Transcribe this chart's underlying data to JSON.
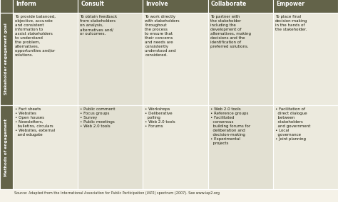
{
  "headers": [
    "Inform",
    "Consult",
    "Involve",
    "Collaborate",
    "Empower"
  ],
  "row_labels": [
    "Stakeholder engagement goal",
    "Methods of engagement"
  ],
  "header_bg": "#636349",
  "header_text_color": "#ffffff",
  "row_label_bg": "#636349",
  "row_label_text_color": "#ffffff",
  "cell_bg": [
    "#eceade",
    "#e2e0d2",
    "#eceade",
    "#e2e0d2",
    "#eceade"
  ],
  "border_color": "#ffffff",
  "source_text": "Source: Adapted from the International Association for Public Participation (IAP2) spectrum (2007). See www.iap2.org",
  "goal_row": [
    "To provide balanced,\nobjective, accurate\nand consistent\ninformation to\nassist stakeholders\nto understand\nthe problem,\nalternatives,\nopportunities and/or\nsolutions.",
    "To obtain feedback\nfrom stakeholders\non analysis,\nalternatives and/\nor outcomes.",
    "To work directly\nwith stakeholders\nthroughout\nthe process\nto ensure that\ntheir concerns\nand needs are\nconsistently\nunderstood and\nconsidered.",
    "To partner with\nthe stakeholder\nincluding the\ndevelopment of\nalternatives, making\ndecisions and the\nidentification of\npreferred solutions.",
    "To place final\ndecision-making\nin the hands of\nthe stakeholder."
  ],
  "methods_row": [
    "• Fact sheets\n• Websites\n• Open houses\n• Newsletters,\n  bulletins, circulars\n• Websites, external\n  and edugate",
    "• Public comment\n• Focus groups\n• Survey\n• Public meetings\n• Web 2.0 tools",
    "• Workshops\n• Deliberative\n  polling\n• Web 2.0 tools\n• Forums",
    "• Web 2.0 tools\n• Reference groups\n• Facilitated\n  consensus\n  building forums for\n  deliberation and\n  decision-making\n• Experimental\n  projects",
    "• Facilitation of\n  direct dialogue\n  between\n  stakeholders\n  and government\n• Local\n  governance\n• Joint planning"
  ],
  "figsize": [
    4.74,
    2.84
  ],
  "dpi": 100,
  "bg_color": "#f5f2e8"
}
